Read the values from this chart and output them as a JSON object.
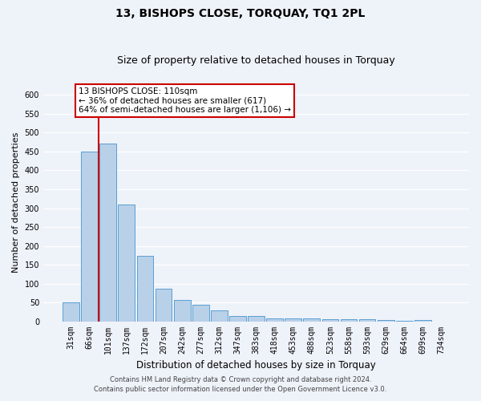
{
  "title": "13, BISHOPS CLOSE, TORQUAY, TQ1 2PL",
  "subtitle": "Size of property relative to detached houses in Torquay",
  "xlabel": "Distribution of detached houses by size in Torquay",
  "ylabel": "Number of detached properties",
  "categories": [
    "31sqm",
    "66sqm",
    "101sqm",
    "137sqm",
    "172sqm",
    "207sqm",
    "242sqm",
    "277sqm",
    "312sqm",
    "347sqm",
    "383sqm",
    "418sqm",
    "453sqm",
    "488sqm",
    "523sqm",
    "558sqm",
    "593sqm",
    "629sqm",
    "664sqm",
    "699sqm",
    "734sqm"
  ],
  "values": [
    52,
    450,
    470,
    310,
    175,
    88,
    57,
    44,
    30,
    15,
    15,
    8,
    8,
    8,
    6,
    6,
    6,
    5,
    3,
    5,
    0
  ],
  "bar_color": "#b8d0e8",
  "bar_edge_color": "#5a9fd4",
  "highlight_bar_index": 2,
  "highlight_color": "#cc0000",
  "ylim": [
    0,
    630
  ],
  "yticks": [
    0,
    50,
    100,
    150,
    200,
    250,
    300,
    350,
    400,
    450,
    500,
    550,
    600
  ],
  "annotation_text": "13 BISHOPS CLOSE: 110sqm\n← 36% of detached houses are smaller (617)\n64% of semi-detached houses are larger (1,106) →",
  "annotation_box_color": "#ffffff",
  "annotation_border_color": "#cc0000",
  "footer1": "Contains HM Land Registry data © Crown copyright and database right 2024.",
  "footer2": "Contains public sector information licensed under the Open Government Licence v3.0.",
  "background_color": "#eef2f9",
  "grid_color": "#ffffff",
  "title_fontsize": 10,
  "subtitle_fontsize": 9,
  "tick_fontsize": 7,
  "ylabel_fontsize": 8,
  "xlabel_fontsize": 8.5,
  "annotation_fontsize": 7.5,
  "footer_fontsize": 6
}
